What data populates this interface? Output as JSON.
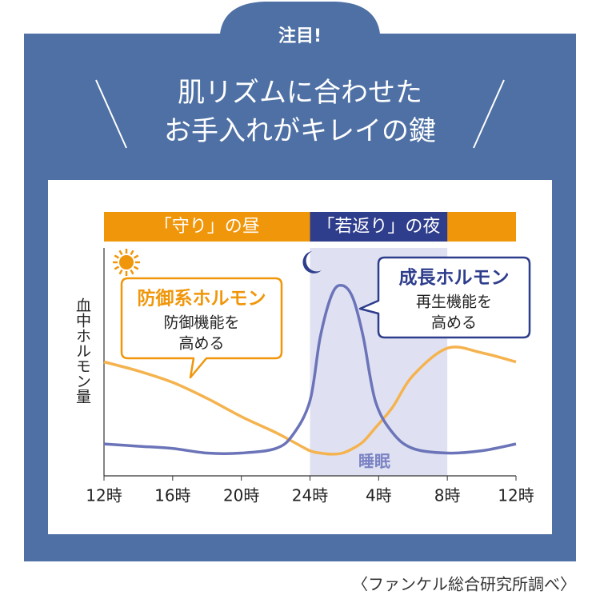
{
  "header": {
    "badge": "注目!",
    "title_lines": [
      "肌リズムに合わせた",
      "お手入れがキレイの鍵"
    ]
  },
  "chart_data": {
    "type": "line",
    "periods": [
      {
        "label": "「守り」の昼",
        "color": "#f0960a"
      },
      {
        "label": "「若返り」の夜",
        "color": "#2e3d8c"
      }
    ],
    "y_label": "血中ホルモン量",
    "sleep_label": "睡眠",
    "x": [
      0,
      2,
      4,
      6,
      8,
      10,
      11,
      12,
      12.6,
      13.3,
      13.9,
      14.5,
      15.1,
      15.8,
      16.8,
      18,
      20,
      22,
      24
    ],
    "xlim": [
      0,
      24
    ],
    "xticks": [
      {
        "value": 0,
        "label": "12時"
      },
      {
        "value": 4,
        "label": "16時"
      },
      {
        "value": 8,
        "label": "20時"
      },
      {
        "value": 12,
        "label": "24時"
      },
      {
        "value": 16,
        "label": "4時"
      },
      {
        "value": 20,
        "label": "8時"
      },
      {
        "value": 24,
        "label": "12時"
      }
    ],
    "ylim": [
      0,
      100
    ],
    "grid": false,
    "series": [
      {
        "name": "防御系ホルモン",
        "description_lines": [
          "防御機能を",
          "高める"
        ],
        "color": "#f5b34f",
        "values": [
          50,
          46,
          41,
          34,
          26,
          19,
          15,
          11,
          10,
          9.5,
          10,
          12,
          15,
          21,
          30,
          44,
          56,
          54,
          50
        ]
      },
      {
        "name": "成長ホルモン",
        "description_lines": [
          "再生機能を",
          "高める"
        ],
        "color": "#6b74b8",
        "values": [
          14,
          13,
          12,
          10,
          10,
          12,
          18,
          33,
          61,
          80,
          83.5,
          78,
          61,
          33,
          19,
          12,
          10,
          11,
          14
        ]
      }
    ]
  },
  "footer": {
    "source": "〈ファンケル総合研究所調べ〉"
  }
}
